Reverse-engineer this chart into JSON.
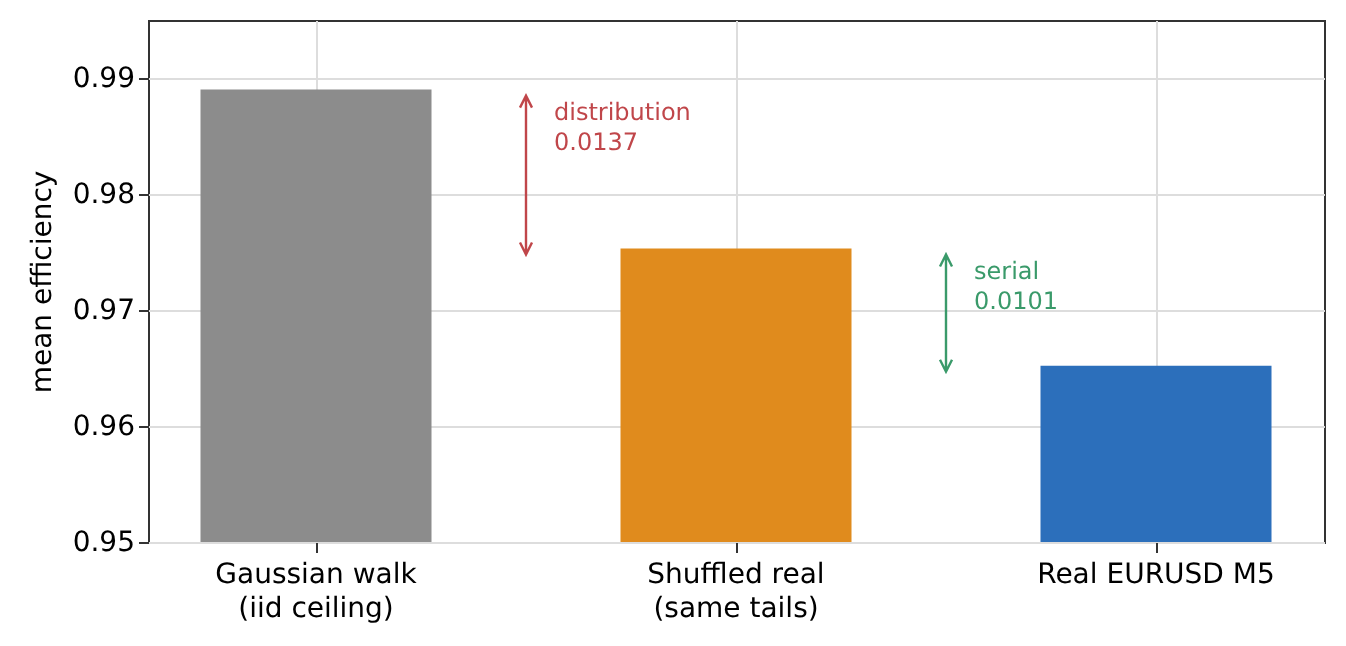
{
  "chart_data": {
    "type": "bar",
    "ylabel": "mean efficiency",
    "categories": [
      "Gaussian walk\n(iid ceiling)",
      "Shuffled real\n(same tails)",
      "Real EURUSD M5"
    ],
    "values": [
      0.989,
      0.9753,
      0.9652
    ],
    "colors": [
      "#8c8c8c",
      "#e08b1d",
      "#2c6fbb"
    ],
    "ylim": [
      0.95,
      0.995
    ],
    "yticks": [
      0.95,
      0.96,
      0.97,
      0.98,
      0.99
    ],
    "grid": true,
    "annotations": [
      "distribution\n0.0137",
      "serial\n0.0101"
    ]
  }
}
